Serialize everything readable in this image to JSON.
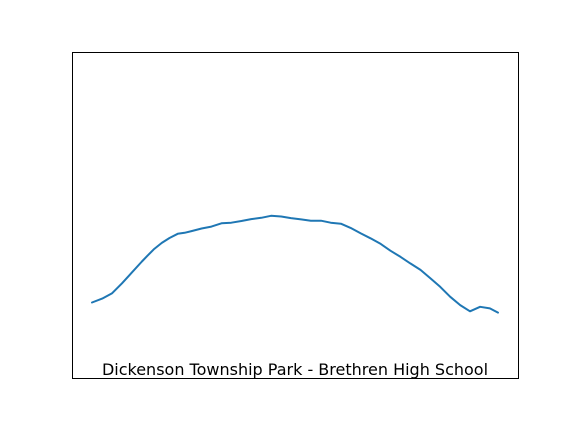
{
  "chart_data": {
    "type": "line",
    "title": "",
    "caption": "Dickenson Township Park - Brethren High School",
    "xlabel": "",
    "ylabel": "",
    "grid": false,
    "axes_ticks": false,
    "color": "#1f77b4",
    "xlim": [
      0,
      1
    ],
    "ylim": [
      0,
      1
    ],
    "series": [
      {
        "x": [
          0.0,
          0.025,
          0.049,
          0.074,
          0.098,
          0.123,
          0.137,
          0.152,
          0.172,
          0.191,
          0.211,
          0.228,
          0.245,
          0.27,
          0.294,
          0.319,
          0.343,
          0.368,
          0.392,
          0.417,
          0.441,
          0.466,
          0.49,
          0.515,
          0.539,
          0.564,
          0.588,
          0.613,
          0.637,
          0.662,
          0.686,
          0.711,
          0.735,
          0.76,
          0.784,
          0.809,
          0.833,
          0.858,
          0.882,
          0.907,
          0.931,
          0.956,
          0.98,
          1.0
        ],
        "y": [
          0.233,
          0.245,
          0.261,
          0.292,
          0.325,
          0.359,
          0.377,
          0.396,
          0.416,
          0.431,
          0.444,
          0.447,
          0.452,
          0.46,
          0.466,
          0.476,
          0.478,
          0.483,
          0.489,
          0.493,
          0.499,
          0.497,
          0.492,
          0.488,
          0.484,
          0.484,
          0.478,
          0.475,
          0.462,
          0.445,
          0.43,
          0.413,
          0.392,
          0.373,
          0.353,
          0.333,
          0.308,
          0.281,
          0.251,
          0.225,
          0.206,
          0.22,
          0.215,
          0.202
        ]
      }
    ]
  }
}
